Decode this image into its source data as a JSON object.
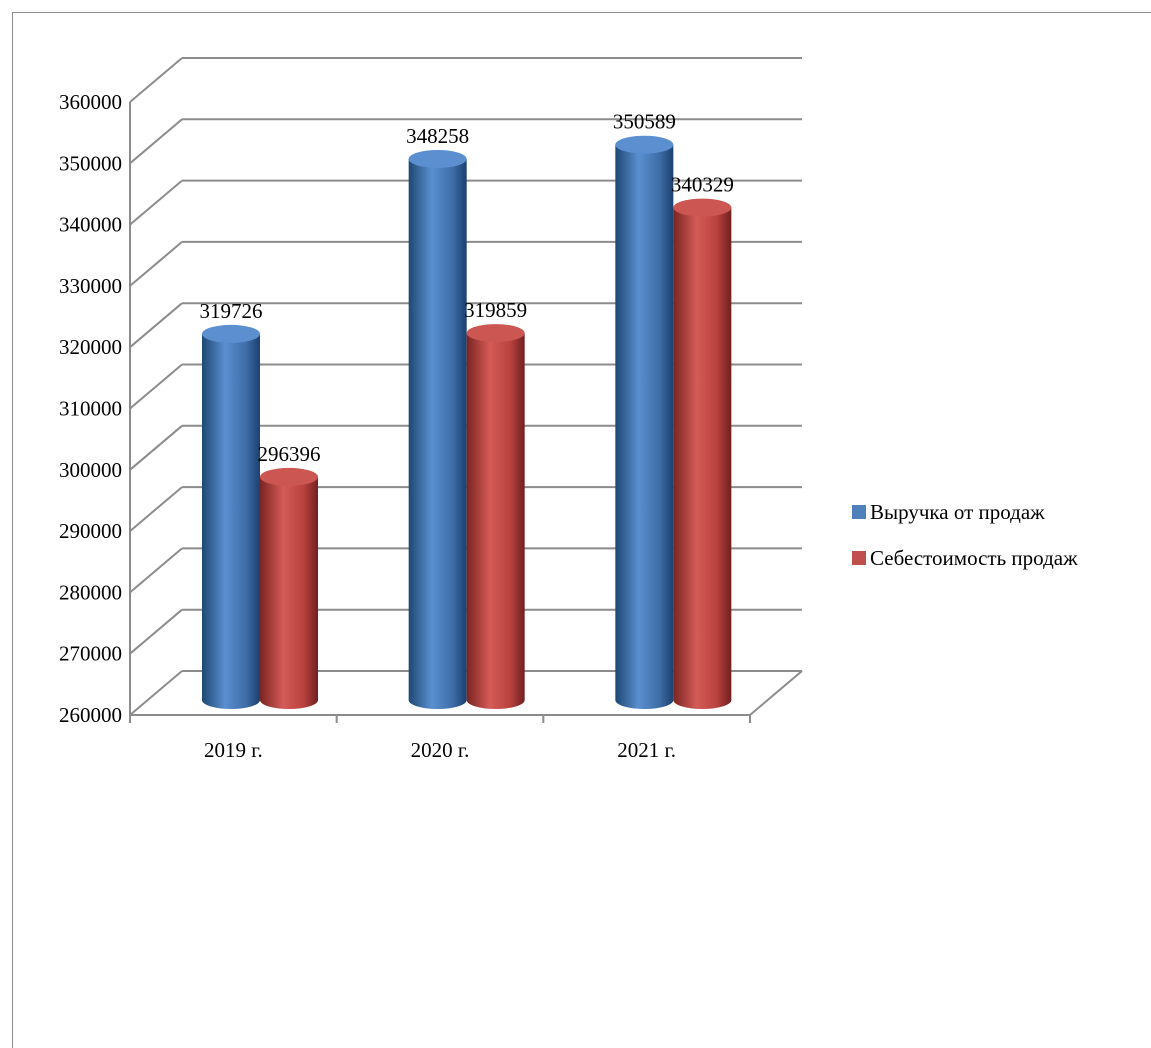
{
  "chart_data": {
    "type": "bar",
    "style": "3d-cylinder",
    "title": "",
    "xlabel": "",
    "ylabel": "",
    "categories": [
      "2019 г.",
      "2020 г.",
      "2021 г."
    ],
    "series": [
      {
        "name": "Выручка от продаж",
        "color": "#4f81bd",
        "values": [
          319726,
          348258,
          350589
        ],
        "labels": [
          "319726",
          "348258",
          "350589"
        ]
      },
      {
        "name": "Себестоимость продаж",
        "color": "#c0504d",
        "values": [
          296396,
          319859,
          340329
        ],
        "labels": [
          "296396",
          "319859",
          "340329"
        ]
      }
    ],
    "ylim": [
      260000,
      360000
    ],
    "y_ticks": [
      "260000",
      "270000",
      "280000",
      "290000",
      "300000",
      "310000",
      "320000",
      "330000",
      "340000",
      "350000",
      "360000"
    ],
    "grid": true,
    "legend_position": "right"
  }
}
